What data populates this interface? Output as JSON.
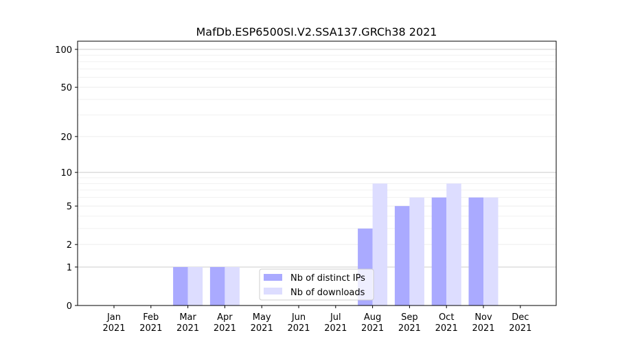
{
  "chart_data": {
    "type": "bar",
    "title": "MafDb.ESP6500SI.V2.SSA137.GRCh38 2021",
    "xlabel": "",
    "ylabel": "",
    "yscale": "symlog",
    "ylim": [
      0,
      116
    ],
    "yticks": [
      0,
      1,
      2,
      5,
      10,
      20,
      50,
      100
    ],
    "ytick_labels": [
      "0",
      "1",
      "2",
      "5",
      "10",
      "20",
      "50",
      "100"
    ],
    "categories": [
      "Jan\n2021",
      "Feb\n2021",
      "Mar\n2021",
      "Apr\n2021",
      "May\n2021",
      "Jun\n2021",
      "Jul\n2021",
      "Aug\n2021",
      "Sep\n2021",
      "Oct\n2021",
      "Nov\n2021",
      "Dec\n2021"
    ],
    "series": [
      {
        "name": "Nb of distinct IPs",
        "color": "#aaaaff",
        "values": [
          0,
          0,
          1,
          1,
          0,
          0,
          0,
          3,
          5,
          6,
          6,
          0
        ]
      },
      {
        "name": "Nb of downloads",
        "color": "#ddddff",
        "values": [
          0,
          0,
          1,
          1,
          0,
          0,
          0,
          8,
          6,
          8,
          6,
          0
        ]
      }
    ],
    "grid": true,
    "legend_position": "lower-center"
  }
}
